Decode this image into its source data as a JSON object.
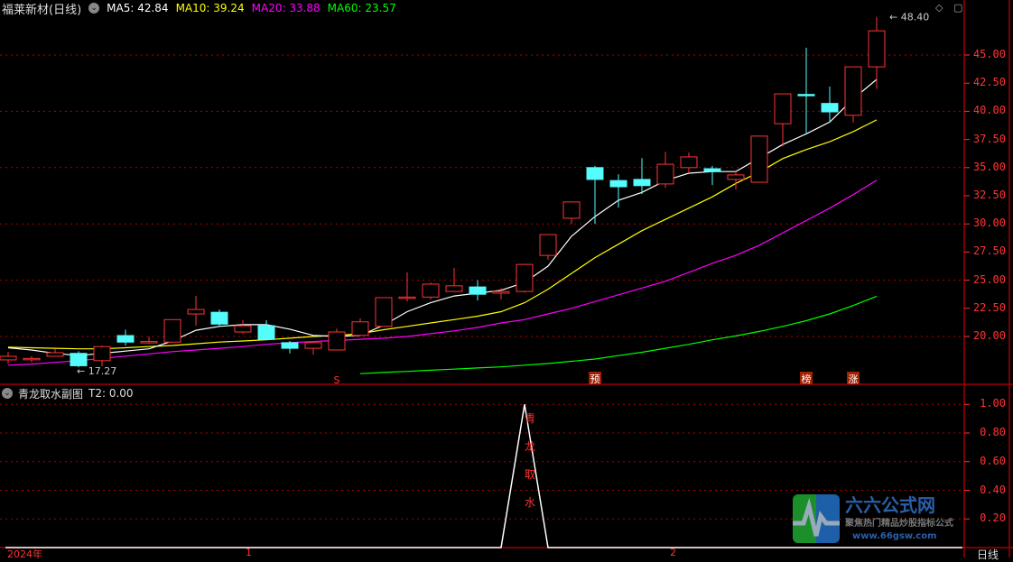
{
  "header": {
    "title": "福莱新材(日线)",
    "ma": [
      {
        "label": "MA5: 42.84",
        "color": "#ffffff"
      },
      {
        "label": "MA10: 39.24",
        "color": "#ffff00"
      },
      {
        "label": "MA20: 33.88",
        "color": "#ff00ff"
      },
      {
        "label": "MA60: 23.57",
        "color": "#00ff00"
      }
    ]
  },
  "sub_header": {
    "title": "青龙取水副图",
    "value": "T2: 0.00"
  },
  "price_axis": [
    "45.00",
    "42.50",
    "40.00",
    "37.50",
    "35.00",
    "32.50",
    "30.00",
    "27.50",
    "25.00",
    "22.50",
    "20.00"
  ],
  "sub_axis": [
    "1.00",
    "0.80",
    "0.60",
    "0.40",
    "0.20"
  ],
  "time_axis": [
    "2024年",
    "1",
    "2"
  ],
  "period_label": "日线",
  "annotations": {
    "high": "48.40",
    "low": "17.27"
  },
  "markers": [
    {
      "index": 14,
      "text": "S",
      "style": "arrow"
    },
    {
      "index": 25,
      "text": "预",
      "style": "box"
    },
    {
      "index": 34,
      "text": "榜",
      "style": "box"
    },
    {
      "index": 36,
      "text": "涨",
      "style": "box"
    }
  ],
  "signal_text": [
    "青",
    "龙",
    "取",
    "水"
  ],
  "logo": {
    "name": "六六公式网",
    "slogan": "聚焦热门精品炒股指标公式",
    "url": "www.66gsw.com"
  },
  "colors": {
    "up": "#ff3333",
    "down": "#54fcfc",
    "grid": "#a00000",
    "axis": "#ff3333"
  },
  "chart_data": {
    "type": "candlestick",
    "price_range": [
      17,
      48.5
    ],
    "candles": [
      [
        17.92,
        18.64,
        17.6,
        18.24
      ],
      [
        17.95,
        18.24,
        17.7,
        18.05
      ],
      [
        18.24,
        18.88,
        18.24,
        18.56
      ],
      [
        18.5,
        18.7,
        17.27,
        17.4
      ],
      [
        17.85,
        19.2,
        17.35,
        19.1
      ],
      [
        20.08,
        20.6,
        19.2,
        19.5
      ],
      [
        19.45,
        20.0,
        19.35,
        19.55
      ],
      [
        19.5,
        21.5,
        19.5,
        21.5
      ],
      [
        22.0,
        23.6,
        20.95,
        22.4
      ],
      [
        22.15,
        22.4,
        20.9,
        21.1
      ],
      [
        20.4,
        21.45,
        20.25,
        20.95
      ],
      [
        20.95,
        21.45,
        19.7,
        19.75
      ],
      [
        19.45,
        19.6,
        18.5,
        18.95
      ],
      [
        18.95,
        19.45,
        18.4,
        19.45
      ],
      [
        18.8,
        20.7,
        18.8,
        20.4
      ],
      [
        20.1,
        21.6,
        20.1,
        21.3
      ],
      [
        20.9,
        23.45,
        20.9,
        23.45
      ],
      [
        23.45,
        25.7,
        23.1,
        23.5
      ],
      [
        23.5,
        24.8,
        23.3,
        24.65
      ],
      [
        24.0,
        26.1,
        24.0,
        24.5
      ],
      [
        24.4,
        25.0,
        23.2,
        23.75
      ],
      [
        23.85,
        24.3,
        23.3,
        24.0
      ],
      [
        24.0,
        26.4,
        23.9,
        26.4
      ],
      [
        27.2,
        29.05,
        26.8,
        29.05
      ],
      [
        30.5,
        31.95,
        30.0,
        31.95
      ],
      [
        35.0,
        35.15,
        30.0,
        33.95
      ],
      [
        33.85,
        34.4,
        31.45,
        33.3
      ],
      [
        33.95,
        35.85,
        32.65,
        33.4
      ],
      [
        33.55,
        36.4,
        33.2,
        35.3
      ],
      [
        35.0,
        36.35,
        34.5,
        35.95
      ],
      [
        34.9,
        35.15,
        33.45,
        34.65
      ],
      [
        33.95,
        34.65,
        33.05,
        34.35
      ],
      [
        33.7,
        37.8,
        33.7,
        37.8
      ],
      [
        38.9,
        41.55,
        36.9,
        41.55
      ],
      [
        41.5,
        45.65,
        37.95,
        41.45
      ],
      [
        40.7,
        42.2,
        39.0,
        39.95
      ],
      [
        39.65,
        43.95,
        39.0,
        43.95
      ],
      [
        43.95,
        48.4,
        42.0,
        47.15
      ]
    ],
    "ma5": [
      19.0,
      18.8,
      18.5,
      18.3,
      18.5,
      18.7,
      18.9,
      19.6,
      20.55,
      20.9,
      21.05,
      21.05,
      20.65,
      20.1,
      20.0,
      20.1,
      21.0,
      22.2,
      23.0,
      23.6,
      23.85,
      24.1,
      24.8,
      26.25,
      28.9,
      30.65,
      32.1,
      32.8,
      33.85,
      34.5,
      34.65,
      34.65,
      35.85,
      37.05,
      38.0,
      39.05,
      41.1,
      42.84
    ],
    "ma10": [
      19.05,
      19.0,
      18.95,
      18.9,
      18.9,
      19.0,
      19.1,
      19.2,
      19.35,
      19.5,
      19.6,
      19.7,
      19.85,
      20.0,
      20.1,
      20.25,
      20.6,
      20.9,
      21.2,
      21.5,
      21.8,
      22.2,
      23.0,
      24.2,
      25.6,
      27.0,
      28.2,
      29.4,
      30.4,
      31.4,
      32.4,
      33.6,
      34.6,
      35.8,
      36.6,
      37.3,
      38.2,
      39.24
    ],
    "ma20": [
      17.45,
      17.55,
      17.7,
      17.85,
      18.05,
      18.25,
      18.45,
      18.65,
      18.8,
      18.95,
      19.1,
      19.3,
      19.45,
      19.55,
      19.65,
      19.75,
      19.85,
      20.0,
      20.25,
      20.5,
      20.8,
      21.2,
      21.5,
      22.0,
      22.5,
      23.1,
      23.7,
      24.3,
      24.9,
      25.7,
      26.5,
      27.2,
      28.1,
      29.2,
      30.3,
      31.4,
      32.6,
      33.88
    ],
    "ma60": [
      null,
      null,
      null,
      null,
      null,
      null,
      null,
      null,
      null,
      null,
      null,
      null,
      null,
      null,
      null,
      16.7,
      16.8,
      16.9,
      17.0,
      17.1,
      17.2,
      17.3,
      17.45,
      17.6,
      17.8,
      18.0,
      18.3,
      18.6,
      18.95,
      19.3,
      19.7,
      20.05,
      20.45,
      20.9,
      21.4,
      22.0,
      22.75,
      23.57
    ],
    "signal": [
      0,
      0,
      0,
      0,
      0,
      0,
      0,
      0,
      0,
      0,
      0,
      0,
      0,
      0,
      0,
      0,
      0,
      0,
      0,
      0,
      0,
      0,
      1,
      0,
      0,
      0,
      0,
      0,
      0,
      0,
      0,
      0,
      0,
      0,
      0,
      0,
      0,
      0
    ],
    "sub_range": [
      0,
      1.1
    ]
  }
}
